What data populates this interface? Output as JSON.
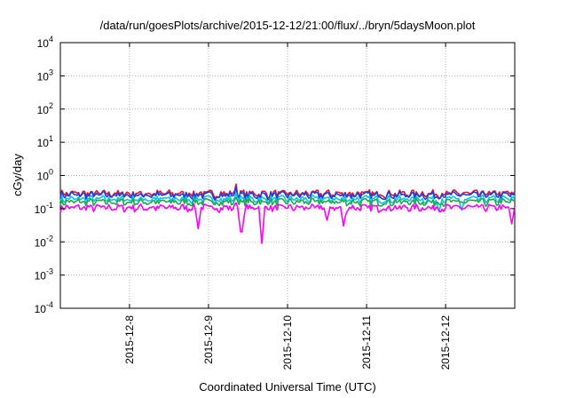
{
  "chart_data": {
    "type": "line",
    "title": "/data/run/goesPlots/archive/2015-12-12/21:00/flux/../bryn/5daysMoon.plot",
    "xlabel": "Coordinated Universal Time (UTC)",
    "ylabel": "cGy/day",
    "yscale": "log",
    "ylim": [
      0.0001,
      10000
    ],
    "xlim": [
      "2015-12-07T03:00",
      "2015-12-12T21:00"
    ],
    "grid": true,
    "yticks": [
      {
        "base": "10",
        "exp": "-4"
      },
      {
        "base": "10",
        "exp": "-3"
      },
      {
        "base": "10",
        "exp": "-2"
      },
      {
        "base": "10",
        "exp": "-1"
      },
      {
        "base": "10",
        "exp": "0"
      },
      {
        "base": "10",
        "exp": "1"
      },
      {
        "base": "10",
        "exp": "2"
      },
      {
        "base": "10",
        "exp": "3"
      },
      {
        "base": "10",
        "exp": "4"
      }
    ],
    "xticks": [
      "2015-12-8",
      "2015-12-9",
      "2015-12-10",
      "2015-12-11",
      "2015-12-12"
    ],
    "series": [
      {
        "color": "#e8112d",
        "level": 0.28,
        "dips": [],
        "spike": 0.55
      },
      {
        "color": "#1740e6",
        "level": 0.25,
        "dips": [],
        "spike": 0.45
      },
      {
        "color": "#00c8e0",
        "level": 0.19,
        "dips": [
          {
            "x": "2015-12-11T22:00",
            "y": 0.08
          },
          {
            "x": "2015-12-12T05:00",
            "y": 0.09
          }
        ],
        "spike": 0.3
      },
      {
        "color": "#22a84a",
        "level": 0.155,
        "dips": [],
        "spike": 0.22
      },
      {
        "color": "#ff00ff",
        "level": 0.105,
        "dips": [
          {
            "x": "2015-12-08T21:00",
            "y": 0.025
          },
          {
            "x": "2015-12-09T10:00",
            "y": 0.02
          },
          {
            "x": "2015-12-09T16:00",
            "y": 0.009
          },
          {
            "x": "2015-12-10T12:00",
            "y": 0.045
          },
          {
            "x": "2015-12-10T17:00",
            "y": 0.03
          },
          {
            "x": "2015-12-12T20:00",
            "y": 0.035
          }
        ],
        "spike": 0.15
      }
    ]
  }
}
